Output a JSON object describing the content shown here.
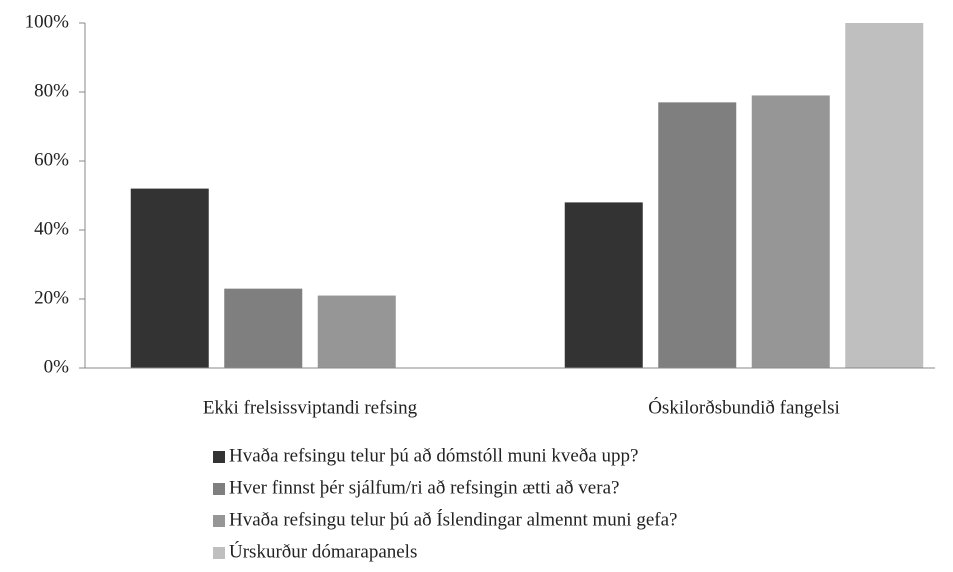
{
  "chart_data": {
    "type": "bar",
    "categories": [
      "Ekki frelsissviptandi refsing",
      "Óskilorðsbundið fangelsi"
    ],
    "series": [
      {
        "name": "Hvaða refsingu telur þú að dómstóll muni kveða upp?",
        "color": "#333333",
        "values": [
          52,
          48
        ]
      },
      {
        "name": "Hver finnst þér sjálfum/ri að refsingin ætti að vera?",
        "color": "#7f7f7f",
        "values": [
          23,
          77
        ]
      },
      {
        "name": "Hvaða refsingu telur þú að Íslendingar almennt muni gefa?",
        "color": "#969696",
        "values": [
          21,
          79
        ]
      },
      {
        "name": "Úrskurður dómarapanels",
        "color": "#bfbfbf",
        "values": [
          0,
          100
        ]
      }
    ],
    "ylim": [
      0,
      100
    ],
    "yticks": [
      {
        "value": 0,
        "label": "0%"
      },
      {
        "value": 20,
        "label": "20%"
      },
      {
        "value": 40,
        "label": "40%"
      },
      {
        "value": 60,
        "label": "60%"
      },
      {
        "value": 80,
        "label": "80%"
      },
      {
        "value": 100,
        "label": "100%"
      }
    ],
    "legend": "bottom"
  }
}
